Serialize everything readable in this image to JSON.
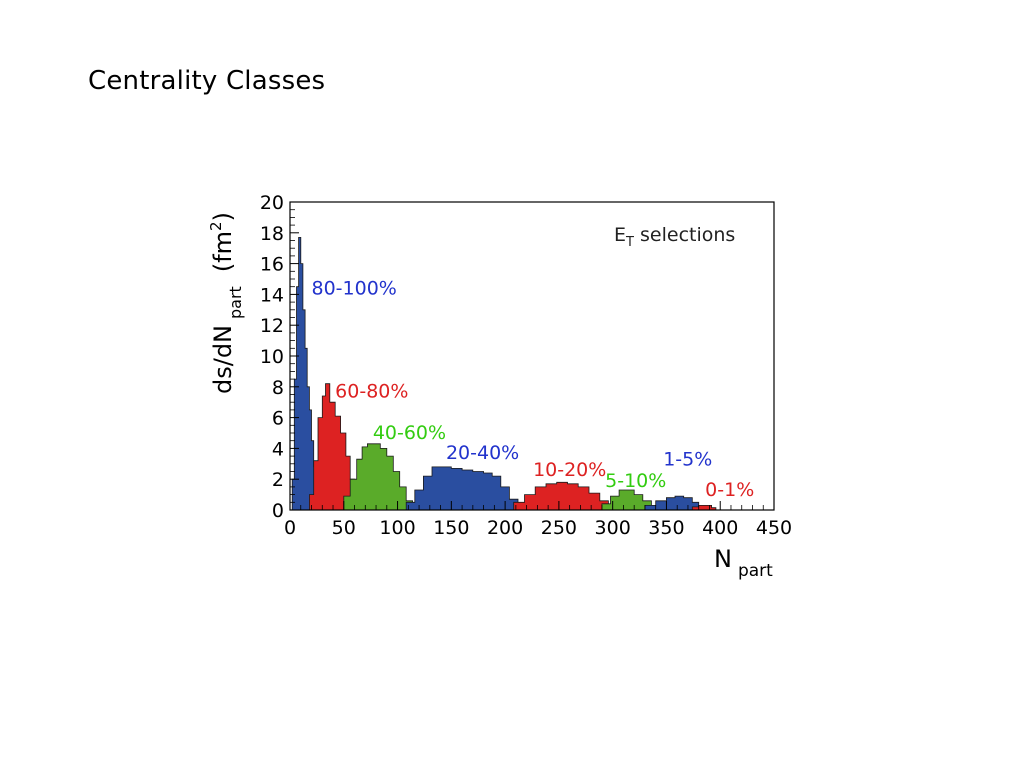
{
  "slide": {
    "title": "Centrality Classes"
  },
  "chart_data": {
    "type": "area",
    "title": "",
    "annotation_label": "E",
    "annotation_subscript": "T",
    "annotation_rest": " selections",
    "xlabel_main": "N",
    "xlabel_sub": "part",
    "ylabel_main": "ds/dN",
    "ylabel_sub": "part",
    "ylabel_unit_open": "(fm",
    "ylabel_unit_sup": "2",
    "ylabel_unit_close": ")",
    "xlim": [
      0,
      450
    ],
    "ylim": [
      0,
      20
    ],
    "xticks": [
      0,
      50,
      100,
      150,
      200,
      250,
      300,
      350,
      400,
      450
    ],
    "yticks": [
      0,
      2,
      4,
      6,
      8,
      10,
      12,
      14,
      16,
      18,
      20
    ],
    "grid": false,
    "series": [
      {
        "name": "80-100%",
        "color": "#2a4ea0",
        "label_color": "#2233cc",
        "label_x": 20,
        "label_y": 14.0,
        "points": [
          [
            0,
            0
          ],
          [
            2,
            2.0
          ],
          [
            4,
            8.5
          ],
          [
            6,
            14.5
          ],
          [
            8,
            17.7
          ],
          [
            10,
            16.0
          ],
          [
            12,
            13.0
          ],
          [
            14,
            10.5
          ],
          [
            16,
            8.0
          ],
          [
            18,
            6.5
          ],
          [
            20,
            4.5
          ],
          [
            22,
            2.8
          ],
          [
            24,
            1.5
          ],
          [
            26,
            0.6
          ],
          [
            28,
            0
          ]
        ]
      },
      {
        "name": "60-80%",
        "color": "#dd2222",
        "label_color": "#dd2222",
        "label_x": 42,
        "label_y": 7.3,
        "points": [
          [
            14,
            0
          ],
          [
            18,
            1.0
          ],
          [
            22,
            3.2
          ],
          [
            26,
            6.0
          ],
          [
            30,
            7.4
          ],
          [
            33,
            8.2
          ],
          [
            37,
            7.0
          ],
          [
            42,
            6.1
          ],
          [
            47,
            5.0
          ],
          [
            52,
            3.5
          ],
          [
            56,
            2.0
          ],
          [
            60,
            0.8
          ],
          [
            64,
            0
          ]
        ]
      },
      {
        "name": "40-60%",
        "color": "#5aab2a",
        "label_color": "#33cc11",
        "label_x": 77,
        "label_y": 4.6,
        "points": [
          [
            44,
            0
          ],
          [
            50,
            0.9
          ],
          [
            56,
            2.0
          ],
          [
            62,
            3.3
          ],
          [
            67,
            4.1
          ],
          [
            72,
            4.3
          ],
          [
            78,
            4.3
          ],
          [
            84,
            4.0
          ],
          [
            90,
            3.5
          ],
          [
            96,
            2.5
          ],
          [
            102,
            1.5
          ],
          [
            108,
            0.6
          ],
          [
            114,
            0
          ]
        ]
      },
      {
        "name": "20-40%",
        "color": "#2a4ea0",
        "label_color": "#2233cc",
        "label_x": 145,
        "label_y": 3.3,
        "points": [
          [
            100,
            0
          ],
          [
            108,
            0.5
          ],
          [
            116,
            1.3
          ],
          [
            124,
            2.2
          ],
          [
            132,
            2.8
          ],
          [
            140,
            2.8
          ],
          [
            150,
            2.7
          ],
          [
            160,
            2.6
          ],
          [
            170,
            2.5
          ],
          [
            180,
            2.4
          ],
          [
            188,
            2.2
          ],
          [
            196,
            1.5
          ],
          [
            204,
            0.7
          ],
          [
            212,
            0
          ]
        ]
      },
      {
        "name": "10-20%",
        "color": "#dd2222",
        "label_color": "#dd2222",
        "label_x": 226,
        "label_y": 2.2,
        "points": [
          [
            198,
            0
          ],
          [
            208,
            0.5
          ],
          [
            218,
            1.0
          ],
          [
            228,
            1.5
          ],
          [
            238,
            1.7
          ],
          [
            248,
            1.8
          ],
          [
            258,
            1.7
          ],
          [
            268,
            1.5
          ],
          [
            278,
            1.1
          ],
          [
            288,
            0.6
          ],
          [
            296,
            0
          ]
        ]
      },
      {
        "name": "5-10%",
        "color": "#5aab2a",
        "label_color": "#33cc11",
        "label_x": 293,
        "label_y": 1.5,
        "points": [
          [
            280,
            0
          ],
          [
            290,
            0.4
          ],
          [
            298,
            0.9
          ],
          [
            306,
            1.3
          ],
          [
            312,
            1.3
          ],
          [
            320,
            1.0
          ],
          [
            328,
            0.6
          ],
          [
            336,
            0.2
          ],
          [
            342,
            0
          ]
        ]
      },
      {
        "name": "1-5%",
        "color": "#2a4ea0",
        "label_color": "#2233cc",
        "label_x": 347,
        "label_y": 2.9,
        "points": [
          [
            320,
            0
          ],
          [
            330,
            0.3
          ],
          [
            340,
            0.6
          ],
          [
            350,
            0.8
          ],
          [
            358,
            0.9
          ],
          [
            366,
            0.8
          ],
          [
            374,
            0.5
          ],
          [
            380,
            0.2
          ],
          [
            384,
            0
          ]
        ]
      },
      {
        "name": "0-1%",
        "color": "#dd2222",
        "label_color": "#dd2222",
        "label_x": 386,
        "label_y": 0.9,
        "points": [
          [
            368,
            0
          ],
          [
            374,
            0.2
          ],
          [
            380,
            0.3
          ],
          [
            386,
            0.3
          ],
          [
            392,
            0.15
          ],
          [
            396,
            0
          ]
        ]
      }
    ]
  }
}
